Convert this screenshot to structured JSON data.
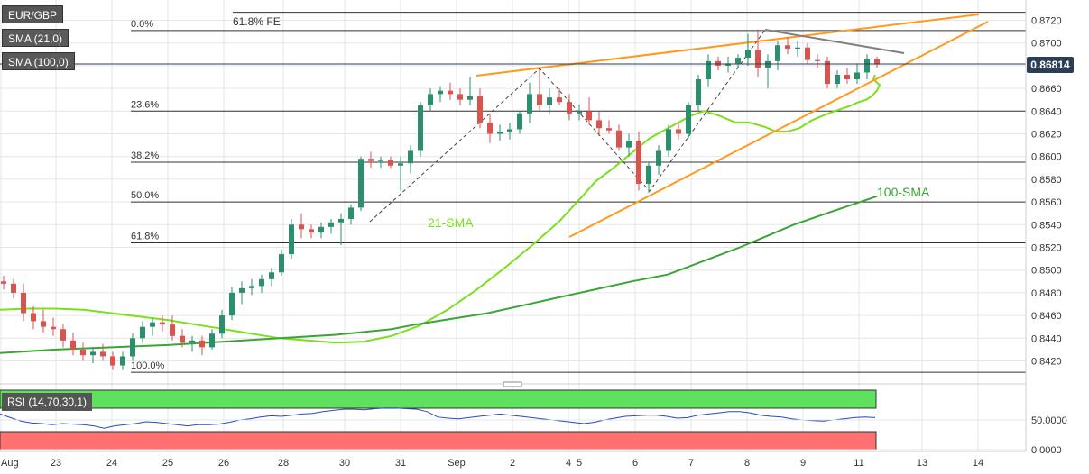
{
  "chart_data": {
    "type": "candlestick",
    "symbol": "EUR/GBP",
    "indicators": [
      "SMA (21,0)",
      "SMA (100,0)"
    ],
    "last_price": "0.86814",
    "y_ticks": [
      "0.8720",
      "0.8700",
      "0.8680",
      "0.8660",
      "0.8640",
      "0.8620",
      "0.8600",
      "0.8580",
      "0.8560",
      "0.8540",
      "0.8520",
      "0.8500",
      "0.8480",
      "0.8460",
      "0.8440",
      "0.8420"
    ],
    "y_tick_values": [
      0.872,
      0.87,
      0.868,
      0.866,
      0.864,
      0.862,
      0.86,
      0.858,
      0.856,
      0.854,
      0.852,
      0.85,
      0.848,
      0.846,
      0.844,
      0.842
    ],
    "ylim": [
      0.8405,
      0.8735
    ],
    "x_ticks": [
      "Aug",
      "23",
      "24",
      "25",
      "26",
      "28",
      "30",
      "31",
      "Sep",
      "2",
      "4",
      "5",
      "6",
      "7",
      "8",
      "9",
      "11",
      "13",
      "14"
    ],
    "x_tick_values": [
      1,
      62,
      124,
      186,
      248,
      314,
      382,
      444,
      506,
      568,
      630,
      642,
      704,
      766,
      828,
      890,
      952,
      1022,
      1084
    ],
    "fibo_levels": [
      {
        "label": "0.0%",
        "price": 0.8711
      },
      {
        "label": "23.6%",
        "price": 0.864
      },
      {
        "label": "38.2%",
        "price": 0.8595
      },
      {
        "label": "50.0%",
        "price": 0.856
      },
      {
        "label": "61.8%",
        "price": 0.8524
      },
      {
        "label": "100.0%",
        "price": 0.841
      }
    ],
    "fe_label": "61.8% FE",
    "fe_price": 0.8727,
    "annotations": {
      "sma21": "21-SMA",
      "sma100": "100-SMA"
    },
    "candles": [
      [
        0.849,
        0.8495,
        0.8483,
        0.8488
      ],
      [
        0.8488,
        0.8492,
        0.8475,
        0.848
      ],
      [
        0.848,
        0.8488,
        0.8455,
        0.8462
      ],
      [
        0.8462,
        0.8468,
        0.8448,
        0.8455
      ],
      [
        0.8455,
        0.8465,
        0.8445,
        0.845
      ],
      [
        0.845,
        0.8458,
        0.8442,
        0.8448
      ],
      [
        0.8448,
        0.8452,
        0.8432,
        0.8438
      ],
      [
        0.8438,
        0.8445,
        0.8425,
        0.843
      ],
      [
        0.843,
        0.8436,
        0.842,
        0.8425
      ],
      [
        0.8425,
        0.8432,
        0.8418,
        0.8428
      ],
      [
        0.8428,
        0.8435,
        0.842,
        0.8424
      ],
      [
        0.8424,
        0.8428,
        0.8412,
        0.8416
      ],
      [
        0.8416,
        0.8428,
        0.8412,
        0.8424
      ],
      [
        0.8424,
        0.8444,
        0.842,
        0.844
      ],
      [
        0.844,
        0.8455,
        0.8436,
        0.845
      ],
      [
        0.845,
        0.8458,
        0.8442,
        0.8454
      ],
      [
        0.8454,
        0.846,
        0.8446,
        0.8452
      ],
      [
        0.8452,
        0.846,
        0.8438,
        0.8442
      ],
      [
        0.8442,
        0.8448,
        0.8432,
        0.8436
      ],
      [
        0.8436,
        0.8442,
        0.8428,
        0.8438
      ],
      [
        0.8438,
        0.8442,
        0.8425,
        0.8432
      ],
      [
        0.8432,
        0.8448,
        0.843,
        0.8444
      ],
      [
        0.8444,
        0.8465,
        0.844,
        0.846
      ],
      [
        0.846,
        0.8485,
        0.8456,
        0.848
      ],
      [
        0.848,
        0.849,
        0.847,
        0.8484
      ],
      [
        0.8484,
        0.8492,
        0.8478,
        0.8486
      ],
      [
        0.8486,
        0.8496,
        0.848,
        0.8492
      ],
      [
        0.8492,
        0.8502,
        0.8486,
        0.8498
      ],
      [
        0.8498,
        0.8518,
        0.8495,
        0.8514
      ],
      [
        0.8514,
        0.8545,
        0.851,
        0.854
      ],
      [
        0.854,
        0.855,
        0.8528,
        0.8536
      ],
      [
        0.8536,
        0.854,
        0.8528,
        0.8533
      ],
      [
        0.8533,
        0.8542,
        0.8528,
        0.8538
      ],
      [
        0.8538,
        0.8545,
        0.8532,
        0.8542
      ],
      [
        0.8542,
        0.855,
        0.8522,
        0.8545
      ],
      [
        0.8545,
        0.8558,
        0.854,
        0.8555
      ],
      [
        0.8555,
        0.86,
        0.8552,
        0.8598
      ],
      [
        0.8598,
        0.8604,
        0.859,
        0.8596
      ],
      [
        0.8596,
        0.86,
        0.859,
        0.8597
      ],
      [
        0.8597,
        0.86,
        0.859,
        0.8592
      ],
      [
        0.8592,
        0.86,
        0.857,
        0.8594
      ],
      [
        0.8594,
        0.861,
        0.8585,
        0.8605
      ],
      [
        0.8605,
        0.8648,
        0.86,
        0.8645
      ],
      [
        0.8645,
        0.866,
        0.864,
        0.8655
      ],
      [
        0.8655,
        0.8662,
        0.8648,
        0.8658
      ],
      [
        0.8658,
        0.8665,
        0.865,
        0.8655
      ],
      [
        0.8655,
        0.866,
        0.8645,
        0.865
      ],
      [
        0.865,
        0.867,
        0.8645,
        0.8653
      ],
      [
        0.8653,
        0.866,
        0.8625,
        0.863
      ],
      [
        0.863,
        0.8638,
        0.8612,
        0.862
      ],
      [
        0.862,
        0.8628,
        0.8614,
        0.8622
      ],
      [
        0.8622,
        0.863,
        0.8615,
        0.8624
      ],
      [
        0.8624,
        0.864,
        0.862,
        0.8638
      ],
      [
        0.8638,
        0.8665,
        0.863,
        0.8655
      ],
      [
        0.8655,
        0.8678,
        0.864,
        0.8645
      ],
      [
        0.8645,
        0.866,
        0.8638,
        0.8652
      ],
      [
        0.8652,
        0.866,
        0.8645,
        0.8648
      ],
      [
        0.8648,
        0.8655,
        0.8632,
        0.8638
      ],
      [
        0.8638,
        0.8646,
        0.8632,
        0.864
      ],
      [
        0.864,
        0.8652,
        0.8628,
        0.8632
      ],
      [
        0.8632,
        0.864,
        0.8618,
        0.8625
      ],
      [
        0.8625,
        0.8632,
        0.862,
        0.8623
      ],
      [
        0.8623,
        0.8628,
        0.8605,
        0.8608
      ],
      [
        0.8608,
        0.862,
        0.86,
        0.8614
      ],
      [
        0.8614,
        0.8622,
        0.857,
        0.8576
      ],
      [
        0.8576,
        0.8595,
        0.8568,
        0.8592
      ],
      [
        0.8592,
        0.861,
        0.8584,
        0.8605
      ],
      [
        0.8605,
        0.8628,
        0.86,
        0.8624
      ],
      [
        0.8624,
        0.863,
        0.8615,
        0.862
      ],
      [
        0.862,
        0.8648,
        0.8616,
        0.8645
      ],
      [
        0.8645,
        0.8672,
        0.864,
        0.8668
      ],
      [
        0.8668,
        0.869,
        0.8662,
        0.8684
      ],
      [
        0.8684,
        0.8688,
        0.8676,
        0.868
      ],
      [
        0.868,
        0.8688,
        0.8674,
        0.8682
      ],
      [
        0.8682,
        0.869,
        0.8678,
        0.8687
      ],
      [
        0.8687,
        0.8708,
        0.868,
        0.8694
      ],
      [
        0.8694,
        0.8712,
        0.867,
        0.8678
      ],
      [
        0.8678,
        0.869,
        0.866,
        0.8684
      ],
      [
        0.8684,
        0.8702,
        0.8676,
        0.8698
      ],
      [
        0.8698,
        0.8705,
        0.869,
        0.8695
      ],
      [
        0.8695,
        0.8702,
        0.8688,
        0.8696
      ],
      [
        0.8696,
        0.87,
        0.8682,
        0.8685
      ],
      [
        0.8685,
        0.869,
        0.8678,
        0.8684
      ],
      [
        0.8684,
        0.8688,
        0.866,
        0.8664
      ],
      [
        0.8664,
        0.8676,
        0.866,
        0.8672
      ],
      [
        0.8672,
        0.8678,
        0.8664,
        0.8668
      ],
      [
        0.8668,
        0.8682,
        0.8664,
        0.8674
      ],
      [
        0.8674,
        0.869,
        0.8668,
        0.8686
      ],
      [
        0.8686,
        0.8688,
        0.8678,
        0.8681
      ]
    ],
    "sma21_values": [
      0.8465,
      0.8466,
      0.8466,
      0.8465,
      0.8462,
      0.8459,
      0.8456,
      0.8452,
      0.8448,
      0.8444,
      0.844,
      0.8438,
      0.8436,
      0.8437,
      0.8442,
      0.8451,
      0.8465,
      0.8482,
      0.8501,
      0.8522,
      0.8543,
      0.8562,
      0.8578,
      0.859,
      0.8603,
      0.8616,
      0.8627,
      0.8636,
      0.864,
      0.8636,
      0.863,
      0.863,
      0.8626,
      0.8622,
      0.8622,
      0.8625,
      0.8632,
      0.8636,
      0.864,
      0.8644,
      0.8648,
      0.865,
      0.8653,
      0.8658,
      0.8663,
      0.8668,
      0.8672
    ],
    "sma21_x": [
      0,
      31,
      62,
      93,
      124,
      155,
      186,
      217,
      248,
      279,
      310,
      341,
      372,
      403,
      434,
      465,
      496,
      527,
      558,
      590,
      620,
      642,
      660,
      680,
      700,
      720,
      745,
      766,
      780,
      797,
      815,
      830,
      848,
      860,
      873,
      886,
      900,
      912,
      925,
      940,
      952,
      960,
      966,
      972,
      975,
      968,
      970
    ],
    "sma100_values": [
      0.8427,
      0.843,
      0.8432,
      0.8434,
      0.8437,
      0.844,
      0.8443,
      0.8448,
      0.8452,
      0.8457,
      0.8462,
      0.8469,
      0.8476,
      0.8483,
      0.849,
      0.8496,
      0.8502,
      0.8508,
      0.8514,
      0.852,
      0.853,
      0.854,
      0.8551,
      0.8565
    ],
    "sma100_x": [
      0,
      62,
      124,
      186,
      248,
      310,
      372,
      434,
      460,
      500,
      540,
      580,
      620,
      660,
      700,
      740,
      760,
      780,
      800,
      820,
      850,
      880,
      920,
      972
    ]
  },
  "rsi": {
    "label": "RSI (14,70,30,1)",
    "ticks": [
      "50.0000",
      "0.0000"
    ],
    "tick_values": [
      50,
      0
    ],
    "values": [
      60,
      54,
      48,
      45,
      44,
      42,
      44,
      43,
      42,
      40,
      36,
      40,
      42,
      44,
      47,
      46,
      44,
      42,
      40,
      42,
      42,
      43,
      46,
      50,
      52,
      55,
      57,
      56,
      58,
      60,
      61,
      64,
      66,
      68,
      68,
      67,
      69,
      70,
      70,
      69,
      68,
      64,
      55,
      53,
      52,
      54,
      56,
      58,
      60,
      58,
      56,
      54,
      52,
      50,
      48,
      46,
      44,
      46,
      50,
      53,
      56,
      57,
      58,
      58,
      56,
      53,
      54,
      58,
      60,
      62,
      64,
      64,
      62,
      58,
      56,
      55,
      52,
      50,
      49,
      48,
      50,
      52,
      54,
      55,
      54
    ]
  },
  "colors": {
    "up": "#2b8f6e",
    "down": "#d9534f",
    "sma21": "#7ae01c",
    "sma100": "#3aa535",
    "trend": "#ff9a1f",
    "resistance": "#7f7f7f",
    "grid": "#e6e6e6",
    "fibo": "#333333",
    "rsi": "#2848c8",
    "overbought": "#5fe05f",
    "oversold": "#ff7070"
  }
}
